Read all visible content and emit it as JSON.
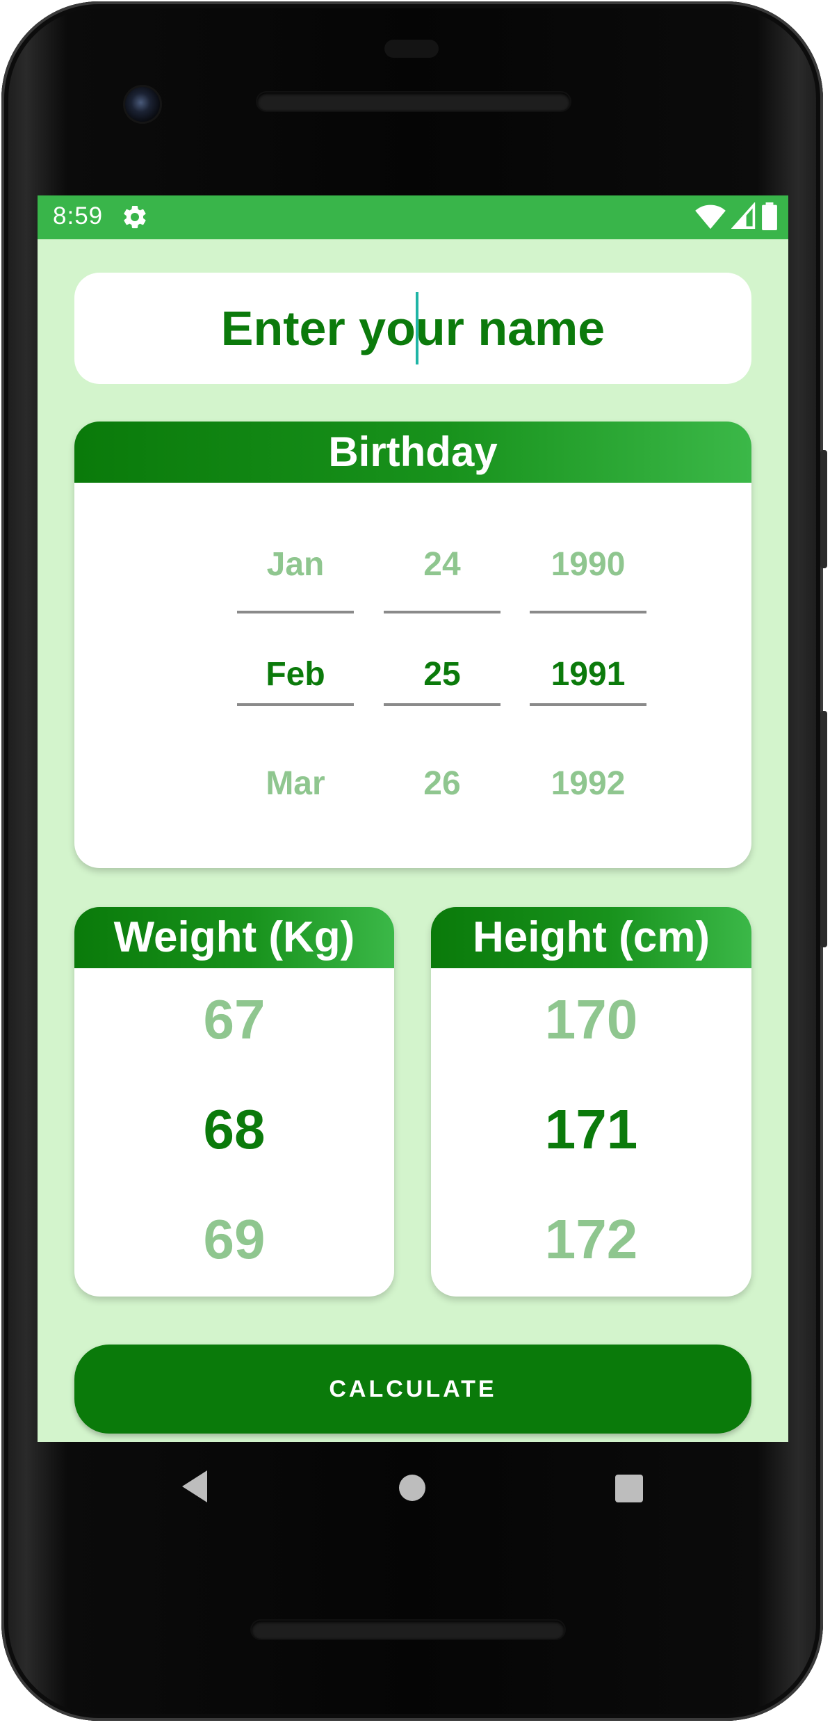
{
  "status_bar": {
    "time": "8:59",
    "background": "#39b54a",
    "icons": [
      "settings-gear-icon",
      "wifi-icon",
      "cellular-signal-icon",
      "battery-icon"
    ]
  },
  "name_field": {
    "value": "Enter your name",
    "text_color": "#0b7a0b"
  },
  "birthday": {
    "title": "Birthday",
    "months": [
      "Jan",
      "Feb",
      "Mar"
    ],
    "days": [
      "24",
      "25",
      "26"
    ],
    "years": [
      "1990",
      "1991",
      "1992"
    ],
    "selected": {
      "month": "Feb",
      "day": "25",
      "year": "1991"
    }
  },
  "weight": {
    "title": "Weight (Kg)",
    "values": [
      "67",
      "68",
      "69"
    ],
    "selected": "68"
  },
  "height": {
    "title": "Height (cm)",
    "values": [
      "170",
      "171",
      "172"
    ],
    "selected": "171"
  },
  "calculate_button": {
    "label": "CALCULATE"
  },
  "colors": {
    "screen_background": "#d3f4cc",
    "primary_green": "#0a7a0a",
    "accent_green": "#39b54a",
    "faded_text": "#8fc68f"
  },
  "nav_bar": {
    "icons": [
      "back-icon",
      "home-icon",
      "recent-apps-icon"
    ]
  }
}
